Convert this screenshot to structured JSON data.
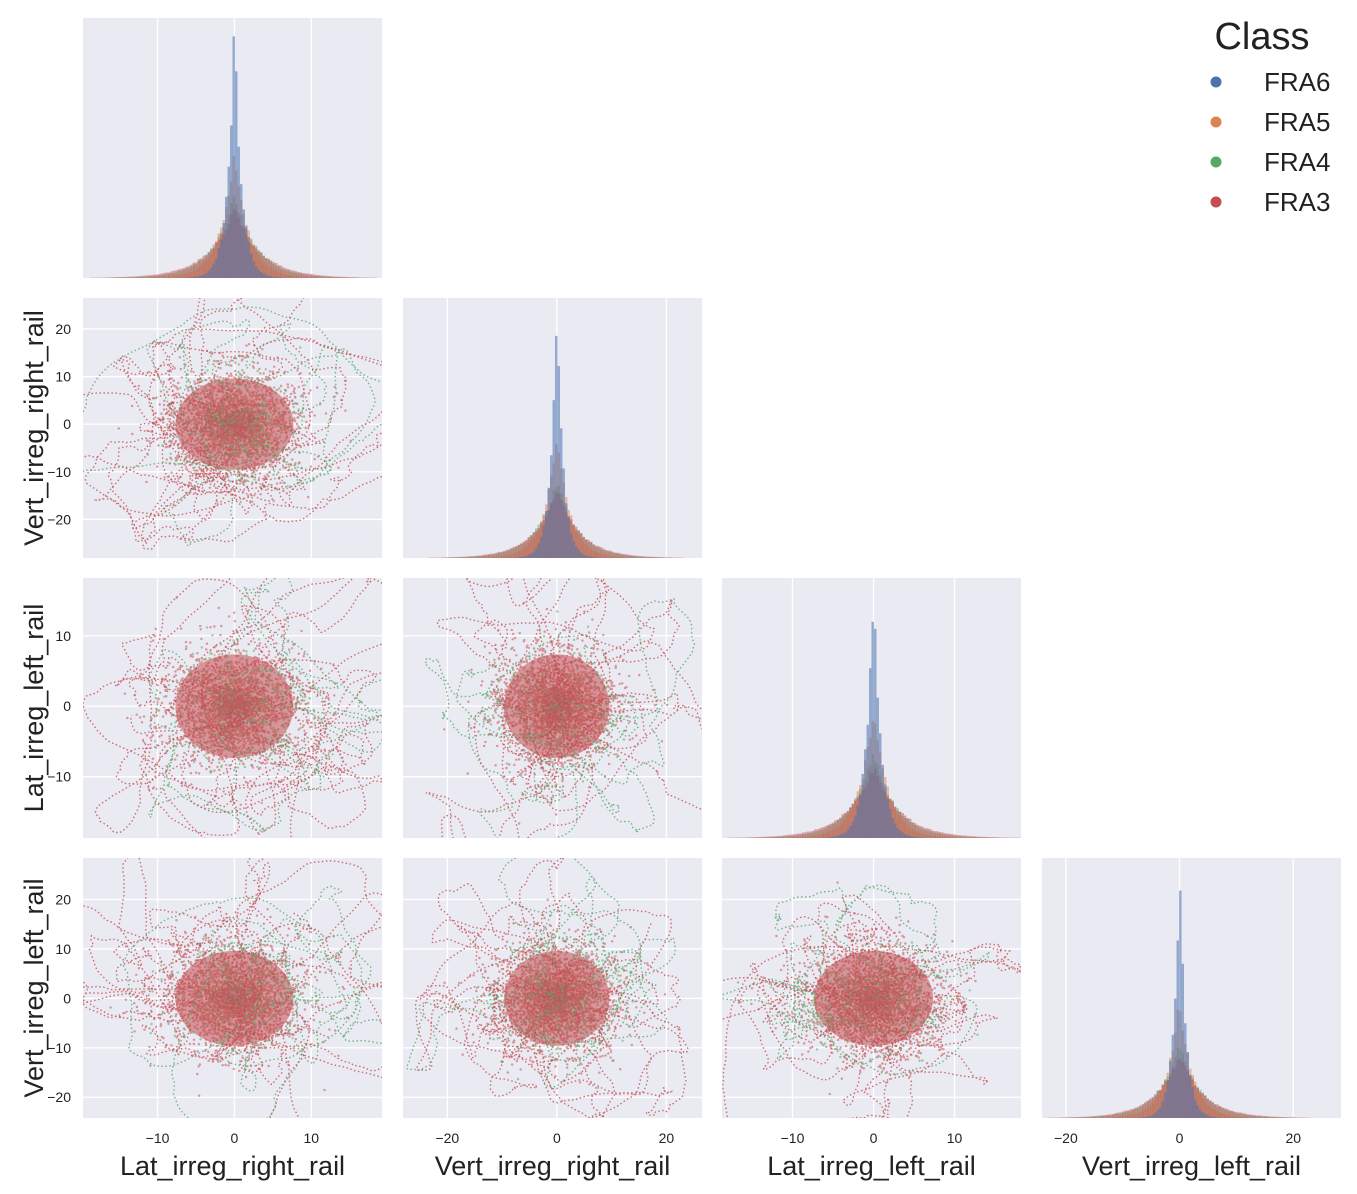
{
  "chart_data": {
    "type": "scatter",
    "title": "",
    "variables": [
      "Lat_irreg_right_rail",
      "Vert_irreg_right_rail",
      "Lat_irreg_left_rail",
      "Vert_irreg_left_rail"
    ],
    "axis_ranges": {
      "Lat_irreg_right_rail": [
        -19.7,
        19.2
      ],
      "Vert_irreg_right_rail": [
        -28.1,
        26.5
      ],
      "Lat_irreg_left_rail": [
        -18.7,
        18.2
      ],
      "Vert_irreg_left_rail": [
        -24.2,
        28.4
      ]
    },
    "ticks": {
      "Lat_irreg_right_rail": [
        -10,
        0,
        10
      ],
      "Vert_irreg_right_rail": [
        -20,
        0,
        20
      ],
      "Lat_irreg_left_rail": [
        -10,
        0,
        10
      ],
      "Vert_irreg_left_rail": [
        -20,
        0,
        20
      ]
    },
    "y_ticks": {
      "Vert_irreg_right_rail": [
        -20,
        -10,
        0,
        10,
        20
      ],
      "Lat_irreg_left_rail": [
        -10,
        0,
        10
      ],
      "Vert_irreg_left_rail": [
        -20,
        -10,
        0,
        10,
        20
      ]
    },
    "tick_labels": {
      "Lat_irreg_right_rail": [
        "−10",
        "0",
        "10"
      ],
      "Vert_irreg_right_rail": [
        "−20",
        "0",
        "20"
      ],
      "Lat_irreg_left_rail": [
        "−10",
        "0",
        "10"
      ],
      "Vert_irreg_left_rail": [
        "−20",
        "0",
        "20"
      ]
    },
    "y_tick_labels": {
      "Vert_irreg_right_rail": [
        "−20",
        "−10",
        "0",
        "10",
        "20"
      ],
      "Lat_irreg_left_rail": [
        "−10",
        "0",
        "10"
      ],
      "Vert_irreg_left_rail": [
        "−20",
        "−10",
        "0",
        "10",
        "20"
      ]
    },
    "series": [
      {
        "name": "FRA6",
        "color": "#4c72b0",
        "std": {
          "Lat_irreg_right_rail": 1.3,
          "Vert_irreg_right_rail": 1.6,
          "Lat_irreg_left_rail": 1.3,
          "Vert_irreg_left_rail": 1.5
        }
      },
      {
        "name": "FRA5",
        "color": "#dd8452",
        "std": {
          "Lat_irreg_right_rail": 2.6,
          "Vert_irreg_right_rail": 3.3,
          "Lat_irreg_left_rail": 2.5,
          "Vert_irreg_left_rail": 3.2
        }
      },
      {
        "name": "FRA4",
        "color": "#55a868",
        "std": {
          "Lat_irreg_right_rail": 4.0,
          "Vert_irreg_right_rail": 5.3,
          "Lat_irreg_left_rail": 3.8,
          "Vert_irreg_left_rail": 5.2
        }
      },
      {
        "name": "FRA3",
        "color": "#c44e52",
        "std": {
          "Lat_irreg_right_rail": 4.8,
          "Vert_irreg_right_rail": 6.0,
          "Lat_irreg_left_rail": 4.6,
          "Vert_irreg_left_rail": 6.0
        }
      }
    ],
    "legend": {
      "title": "Class",
      "position": "top-right",
      "entries": [
        "FRA6",
        "FRA5",
        "FRA4",
        "FRA3"
      ]
    },
    "layout": "pairplot-lower-triangle",
    "background_color": "#eaeaf2",
    "grid": true
  }
}
